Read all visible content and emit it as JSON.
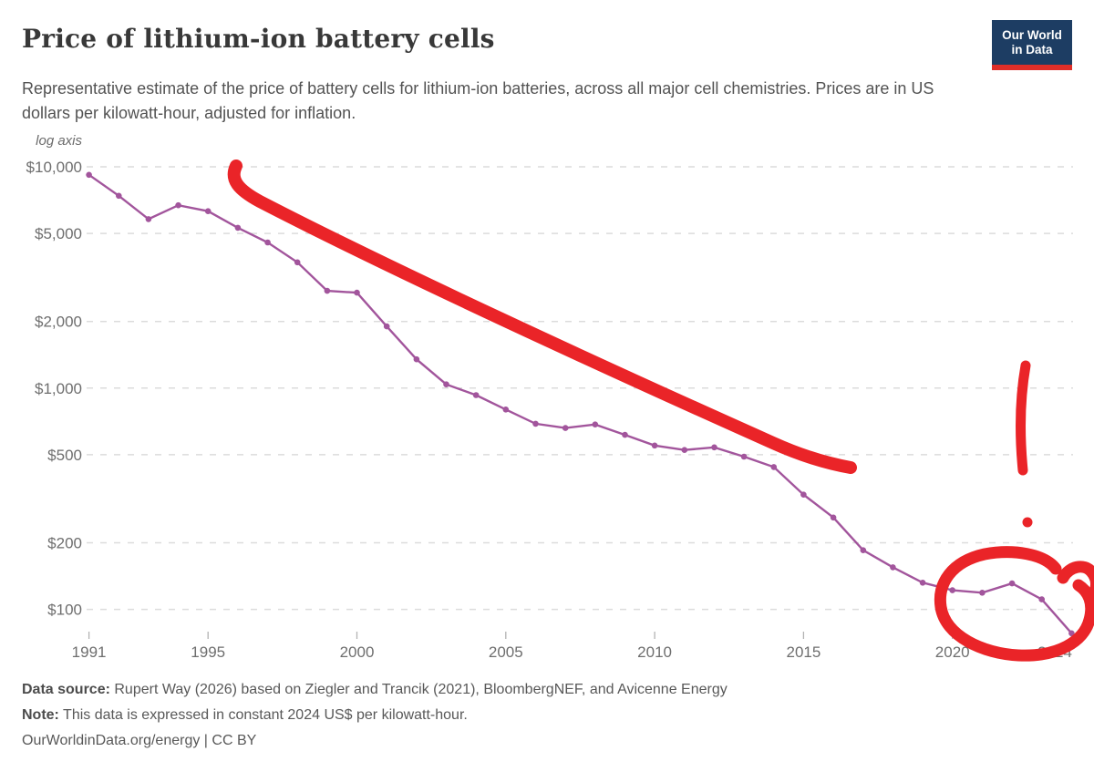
{
  "header": {
    "title": "Price of lithium-ion battery cells",
    "subtitle": "Representative estimate of the price of battery cells for lithium-ion batteries, across all major cell chemistries. Prices are in US dollars per kilowatt-hour, adjusted for inflation.",
    "logo": {
      "line1": "Our World",
      "line2": "in Data",
      "bg_color": "#1d3d63",
      "accent_color": "#e02e28"
    }
  },
  "chart_data": {
    "type": "line",
    "title": "Price of lithium-ion battery cells",
    "axis_note": "log axis",
    "yscale": "log",
    "grid": "horizontal dashed",
    "x": [
      1991,
      1992,
      1993,
      1994,
      1995,
      1996,
      1997,
      1998,
      1999,
      2000,
      2001,
      2002,
      2003,
      2004,
      2005,
      2006,
      2007,
      2008,
      2009,
      2010,
      2011,
      2012,
      2013,
      2014,
      2015,
      2016,
      2017,
      2018,
      2019,
      2020,
      2021,
      2022,
      2023,
      2024
    ],
    "series": [
      {
        "name": "Price of lithium-ion battery cells (US$/kWh)",
        "color": "#a2559c",
        "values": [
          9200,
          7400,
          5800,
          6700,
          6300,
          5300,
          4550,
          3700,
          2750,
          2700,
          1900,
          1350,
          1040,
          930,
          800,
          690,
          660,
          685,
          615,
          550,
          525,
          540,
          490,
          440,
          330,
          260,
          185,
          155,
          132,
          122,
          119,
          131,
          111,
          78
        ]
      }
    ],
    "x_ticks": [
      1991,
      1995,
      2000,
      2005,
      2010,
      2015,
      2020,
      2024
    ],
    "y_ticks": [
      {
        "label": "$10,000",
        "value": 10000
      },
      {
        "label": "$5,000",
        "value": 5000
      },
      {
        "label": "$2,000",
        "value": 2000
      },
      {
        "label": "$1,000",
        "value": 1000
      },
      {
        "label": "$500",
        "value": 500
      },
      {
        "label": "$200",
        "value": 200
      },
      {
        "label": "$100",
        "value": 100
      }
    ],
    "ylim": [
      90,
      10000
    ],
    "xlim": [
      1991,
      2024
    ],
    "annotation_color": "#ea2428",
    "annotations": [
      {
        "type": "stroke",
        "desc": "hand-drawn red diagonal line across the chart from 1996/$10,000 to 2017/$430"
      },
      {
        "type": "exclamation-mark",
        "desc": "hand-drawn red exclamation mark near right side of chart"
      },
      {
        "type": "circle",
        "desc": "hand-drawn red circle around the 2020-2024 data points"
      }
    ]
  },
  "footer": {
    "source_label": "Data source:",
    "source_text": "Rupert Way (2026) based on Ziegler and Trancik (2021), BloombergNEF, and Avicenne Energy",
    "note_label": "Note:",
    "note_text": "This data is expressed in constant 2024 US$ per kilowatt-hour.",
    "license": "OurWorldinData.org/energy | CC BY"
  }
}
